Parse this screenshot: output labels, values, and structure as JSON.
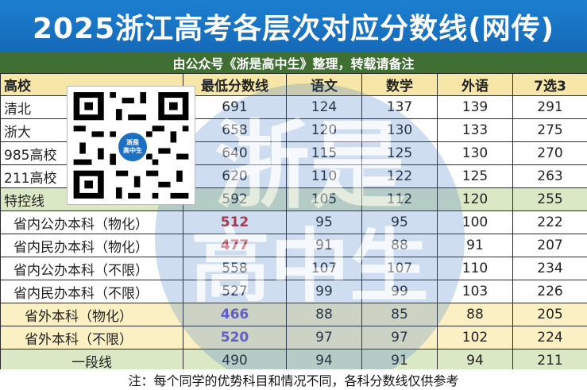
{
  "header": {
    "title": "2025浙江高考各层次对应分数线(网传)",
    "subtitle": "由公众号《浙是高中生》整理，转载请备注"
  },
  "table": {
    "columns": [
      "高校",
      "最低分数线",
      "语文",
      "数学",
      "外语",
      "7选3"
    ],
    "rows": [
      {
        "name": "清北",
        "min": "691",
        "chinese": "124",
        "math": "137",
        "foreign": "139",
        "elective": "291"
      },
      {
        "name": "浙大",
        "min": "658",
        "chinese": "120",
        "math": "130",
        "foreign": "133",
        "elective": "275"
      },
      {
        "name": "985高校",
        "min": "640",
        "chinese": "115",
        "math": "125",
        "foreign": "130",
        "elective": "270"
      },
      {
        "name": "211高校",
        "min": "620",
        "chinese": "110",
        "math": "122",
        "foreign": "125",
        "elective": "263"
      },
      {
        "name": "特控线",
        "min": "592",
        "chinese": "105",
        "math": "112",
        "foreign": "120",
        "elective": "255"
      },
      {
        "name": "省内公办本科（物化）",
        "min": "512",
        "chinese": "95",
        "math": "95",
        "foreign": "100",
        "elective": "222"
      },
      {
        "name": "省内民办本科（物化）",
        "min": "477",
        "chinese": "91",
        "math": "88",
        "foreign": "91",
        "elective": "207"
      },
      {
        "name": "省内公办本科（不限）",
        "min": "558",
        "chinese": "107",
        "math": "107",
        "foreign": "110",
        "elective": "234"
      },
      {
        "name": "省内民办本科（不限）",
        "min": "527",
        "chinese": "99",
        "math": "99",
        "foreign": "103",
        "elective": "226"
      },
      {
        "name": "省外本科（物化）",
        "min": "466",
        "chinese": "88",
        "math": "85",
        "foreign": "88",
        "elective": "205"
      },
      {
        "name": "省外本科（不限）",
        "min": "520",
        "chinese": "97",
        "math": "97",
        "foreign": "102",
        "elective": "224"
      },
      {
        "name": "一段线",
        "min": "490",
        "chinese": "94",
        "math": "91",
        "foreign": "94",
        "elective": "211"
      }
    ]
  },
  "qr": {
    "badge_line1": "浙是",
    "badge_line2": "高中生"
  },
  "watermark": {
    "line1": "浙是",
    "line2": "高中生"
  },
  "footer": {
    "note": "注：每个同学的优势科目和情况不同，各科分数线仅供参考"
  },
  "colors": {
    "title_bg": "#1769ba",
    "subtitle_bg": "#3f6f33",
    "header_row_bg": "#f6e7a9",
    "green_row_bg": "#dbe8c6",
    "yellow_row_bg": "#fbf0c4",
    "highlight_red": "#c0282a",
    "highlight_purple": "#6b56c9"
  }
}
